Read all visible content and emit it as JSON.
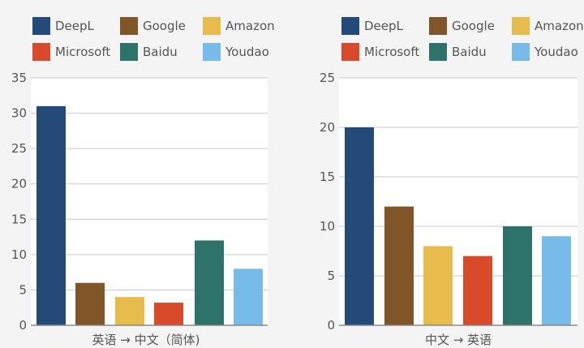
{
  "colors": {
    "DeepL": "#234a78",
    "Google": "#805527",
    "Amazon": "#e6bd4c",
    "Microsoft": "#d94a2b",
    "Baidu": "#2d7369",
    "Youdao": "#76bbea"
  },
  "legend": [
    "DeepL",
    "Google",
    "Amazon",
    "Microsoft",
    "Baidu",
    "Youdao"
  ],
  "chart_data": [
    {
      "type": "bar",
      "categories": [
        "DeepL",
        "Google",
        "Amazon",
        "Microsoft",
        "Baidu",
        "Youdao"
      ],
      "values": [
        31,
        6,
        4,
        3.2,
        12,
        8
      ],
      "xlabel": "英语 → 中文（简体)",
      "ylim": [
        0,
        35
      ],
      "yticks": [
        0,
        5,
        10,
        15,
        20,
        25,
        30,
        35
      ],
      "grid": true
    },
    {
      "type": "bar",
      "categories": [
        "DeepL",
        "Google",
        "Amazon",
        "Microsoft",
        "Baidu",
        "Youdao"
      ],
      "values": [
        20,
        12,
        8,
        7,
        10,
        9
      ],
      "xlabel": "中文 → 英语",
      "ylim": [
        0,
        25
      ],
      "yticks": [
        0,
        5,
        10,
        15,
        20,
        25
      ],
      "grid": true
    }
  ]
}
